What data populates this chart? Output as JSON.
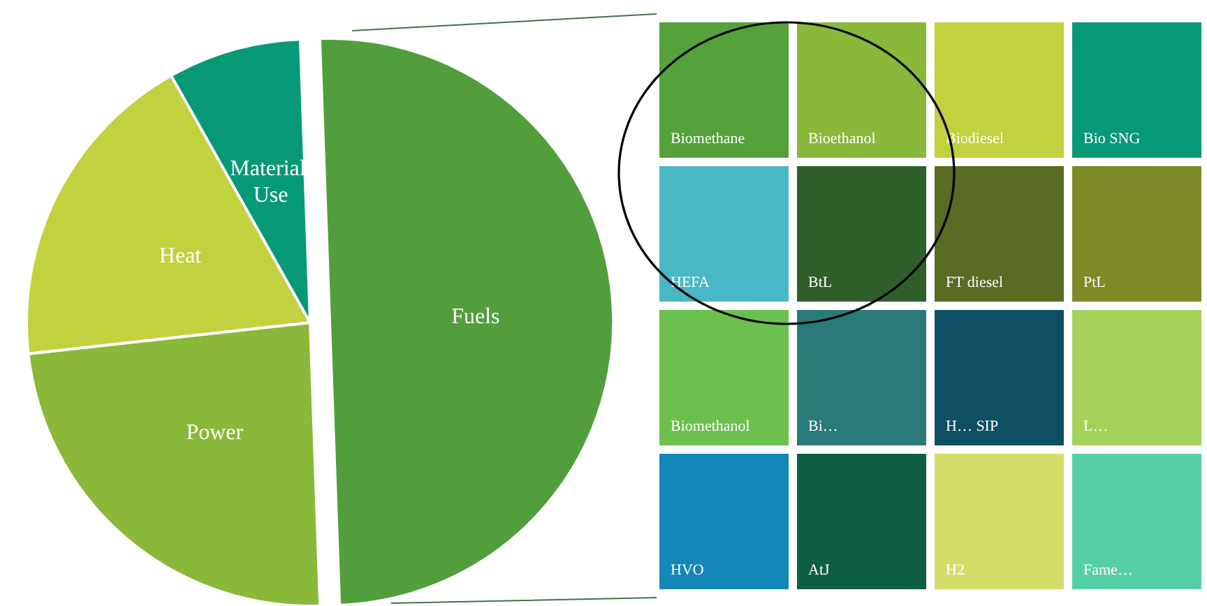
{
  "chart_data": [
    {
      "type": "pie",
      "categories": [
        "Fuels",
        "Power",
        "Heat",
        "Material Use"
      ],
      "values": [
        50,
        23.8,
        18.6,
        7.6
      ],
      "colors": [
        "#529e3c",
        "#8ab83a",
        "#c2d13e",
        "#079977"
      ],
      "legend": false
    },
    {
      "type": "other",
      "categories": [
        "Biomethane",
        "Bioethanol",
        "Biodiesel",
        "Bio SNG",
        "HEFA",
        "Biomethanol",
        "HVO",
        "BtL",
        "FT diesel",
        "PtL",
        "Bi…",
        "AtJ",
        "H… SIP",
        "L…",
        "H2",
        "Fame…"
      ],
      "colors": [
        "#55a13c",
        "#8ab83a",
        "#c2d13e",
        "#079977",
        "#4ab7c6",
        "#6cc04e",
        "#1287b8",
        "#2f5f2a",
        "#5a6b22",
        "#7d8a25",
        "#2b7a7a",
        "#0d5e45",
        "#0e4f63",
        "#a3d15a",
        "#d5dd6a",
        "#57cfa5"
      ],
      "legend": false
    }
  ]
}
